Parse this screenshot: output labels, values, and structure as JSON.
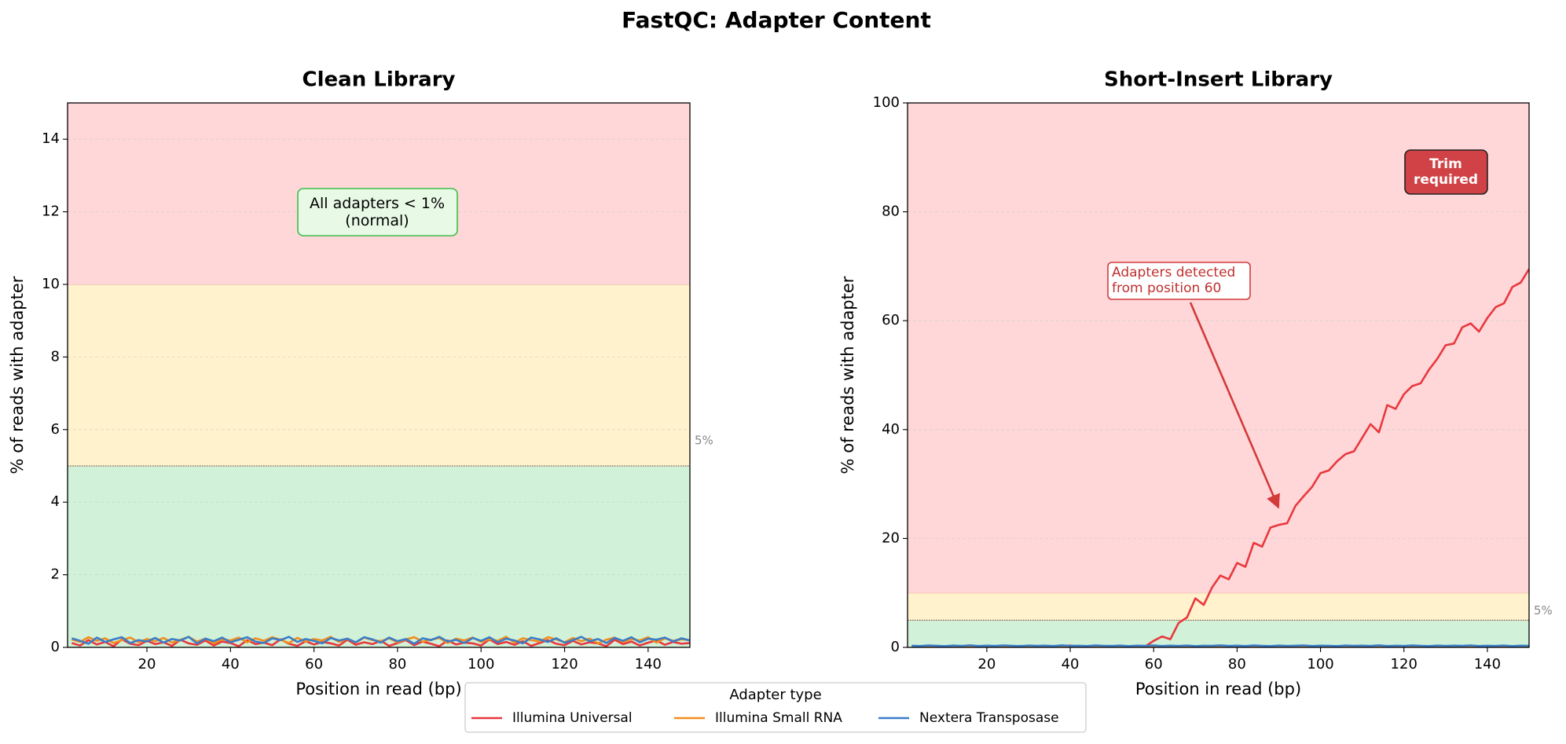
{
  "title": "FastQC: Adapter Content",
  "legend_title": "Adapter type",
  "chart_data": [
    {
      "type": "line",
      "title": "Clean Library",
      "x_label": "Position in read (bp)",
      "y_label": "% of reads with adapter",
      "xlim": [
        1,
        150
      ],
      "xticks": [
        20,
        40,
        60,
        80,
        100,
        120,
        140
      ],
      "ylim": [
        0,
        15
      ],
      "yticks": [
        0,
        2,
        4,
        6,
        8,
        10,
        12,
        14
      ],
      "grid": true,
      "zones": [
        {
          "from": 0,
          "to": 5,
          "color": "#d1f2d8"
        },
        {
          "from": 5,
          "to": 10,
          "color": "#fff2cc"
        },
        {
          "from": 10,
          "to": 15,
          "color": "#ffd7d9"
        }
      ],
      "threshold": {
        "value": 5,
        "label": "5%"
      },
      "annotation": "All adapters < 1%\n(normal)",
      "x": [
        2,
        4,
        6,
        8,
        10,
        12,
        14,
        16,
        18,
        20,
        22,
        24,
        26,
        28,
        30,
        32,
        34,
        36,
        38,
        40,
        42,
        44,
        46,
        48,
        50,
        52,
        54,
        56,
        58,
        60,
        62,
        64,
        66,
        68,
        70,
        72,
        74,
        76,
        78,
        80,
        82,
        84,
        86,
        88,
        90,
        92,
        94,
        96,
        98,
        100,
        102,
        104,
        106,
        108,
        110,
        112,
        114,
        116,
        118,
        120,
        122,
        124,
        126,
        128,
        130,
        132,
        134,
        136,
        138,
        140,
        142,
        144,
        146,
        148,
        150
      ],
      "series": [
        {
          "name": "Illumina Universal",
          "color": "#e8383d",
          "values": [
            0.12,
            0.05,
            0.2,
            0.08,
            0.15,
            0.03,
            0.22,
            0.1,
            0.06,
            0.18,
            0.09,
            0.14,
            0.04,
            0.21,
            0.11,
            0.07,
            0.19,
            0.05,
            0.16,
            0.12,
            0.03,
            0.2,
            0.09,
            0.13,
            0.06,
            0.22,
            0.1,
            0.04,
            0.17,
            0.08,
            0.15,
            0.11,
            0.05,
            0.21,
            0.07,
            0.14,
            0.09,
            0.18,
            0.04,
            0.12,
            0.2,
            0.06,
            0.16,
            0.1,
            0.03,
            0.19,
            0.08,
            0.13,
            0.11,
            0.05,
            0.22,
            0.09,
            0.15,
            0.07,
            0.17,
            0.04,
            0.12,
            0.2,
            0.1,
            0.06,
            0.18,
            0.08,
            0.14,
            0.11,
            0.03,
            0.21,
            0.09,
            0.16,
            0.05,
            0.13,
            0.19,
            0.07,
            0.15,
            0.1,
            0.12
          ]
        },
        {
          "name": "Illumina Small RNA",
          "color": "#f28e1c",
          "values": [
            0.22,
            0.15,
            0.28,
            0.18,
            0.25,
            0.12,
            0.2,
            0.27,
            0.14,
            0.23,
            0.17,
            0.26,
            0.13,
            0.21,
            0.29,
            0.16,
            0.24,
            0.11,
            0.22,
            0.19,
            0.27,
            0.14,
            0.25,
            0.18,
            0.28,
            0.21,
            0.12,
            0.26,
            0.16,
            0.23,
            0.19,
            0.29,
            0.15,
            0.24,
            0.13,
            0.27,
            0.2,
            0.17,
            0.25,
            0.14,
            0.22,
            0.28,
            0.16,
            0.21,
            0.26,
            0.12,
            0.24,
            0.19,
            0.27,
            0.15,
            0.23,
            0.18,
            0.29,
            0.13,
            0.25,
            0.2,
            0.16,
            0.28,
            0.22,
            0.14,
            0.26,
            0.17,
            0.24,
            0.11,
            0.21,
            0.27,
            0.15,
            0.23,
            0.19,
            0.28,
            0.13,
            0.25,
            0.18,
            0.22,
            0.2
          ]
        },
        {
          "name": "Nextera Transposase",
          "color": "#3a7dc9",
          "values": [
            0.25,
            0.18,
            0.1,
            0.27,
            0.15,
            0.22,
            0.28,
            0.12,
            0.2,
            0.16,
            0.26,
            0.13,
            0.23,
            0.19,
            0.29,
            0.11,
            0.24,
            0.17,
            0.27,
            0.14,
            0.21,
            0.28,
            0.16,
            0.12,
            0.25,
            0.2,
            0.29,
            0.15,
            0.23,
            0.18,
            0.11,
            0.26,
            0.19,
            0.24,
            0.14,
            0.28,
            0.22,
            0.13,
            0.27,
            0.17,
            0.23,
            0.1,
            0.25,
            0.2,
            0.29,
            0.16,
            0.21,
            0.12,
            0.26,
            0.18,
            0.28,
            0.14,
            0.24,
            0.19,
            0.11,
            0.27,
            0.22,
            0.15,
            0.25,
            0.13,
            0.2,
            0.29,
            0.17,
            0.23,
            0.12,
            0.26,
            0.18,
            0.28,
            0.14,
            0.24,
            0.21,
            0.27,
            0.16,
            0.25,
            0.19
          ]
        }
      ]
    },
    {
      "type": "line",
      "title": "Short-Insert Library",
      "x_label": "Position in read (bp)",
      "y_label": "% of reads with adapter",
      "xlim": [
        1,
        150
      ],
      "xticks": [
        20,
        40,
        60,
        80,
        100,
        120,
        140
      ],
      "ylim": [
        0,
        100
      ],
      "yticks": [
        0,
        20,
        40,
        60,
        80,
        100
      ],
      "grid": true,
      "zones": [
        {
          "from": 0,
          "to": 5,
          "color": "#d1f2d8"
        },
        {
          "from": 5,
          "to": 10,
          "color": "#fff2cc"
        },
        {
          "from": 10,
          "to": 100,
          "color": "#ffd7d9"
        }
      ],
      "threshold": {
        "value": 5,
        "label": "5%"
      },
      "annotation": "Adapters detected\nfrom position 60",
      "badge": "Trim\nrequired",
      "x": [
        2,
        4,
        6,
        8,
        10,
        12,
        14,
        16,
        18,
        20,
        22,
        24,
        26,
        28,
        30,
        32,
        34,
        36,
        38,
        40,
        42,
        44,
        46,
        48,
        50,
        52,
        54,
        56,
        58,
        60,
        62,
        64,
        66,
        68,
        70,
        72,
        74,
        76,
        78,
        80,
        82,
        84,
        86,
        88,
        90,
        92,
        94,
        96,
        98,
        100,
        102,
        104,
        106,
        108,
        110,
        112,
        114,
        116,
        118,
        120,
        122,
        124,
        126,
        128,
        130,
        132,
        134,
        136,
        138,
        140,
        142,
        144,
        146,
        148,
        150
      ],
      "series": [
        {
          "name": "Illumina Universal",
          "color": "#e8383d",
          "values": [
            0.15,
            0.22,
            0.1,
            0.28,
            0.18,
            0.12,
            0.25,
            0.2,
            0.08,
            0.3,
            0.16,
            0.22,
            0.11,
            0.27,
            0.19,
            0.14,
            0.24,
            0.09,
            0.21,
            0.33,
            0.17,
            0.12,
            0.26,
            0.2,
            0.15,
            0.29,
            0.1,
            0.23,
            0.18,
            1.2,
            2.0,
            1.5,
            4.5,
            5.5,
            9.0,
            7.8,
            11.0,
            13.2,
            12.5,
            15.5,
            14.8,
            19.2,
            18.5,
            22.0,
            22.5,
            22.8,
            26.0,
            27.8,
            29.5,
            32.0,
            32.5,
            34.2,
            35.5,
            36.0,
            38.5,
            41.0,
            39.5,
            44.5,
            43.8,
            46.5,
            48.0,
            48.5,
            51.0,
            53.0,
            55.5,
            55.8,
            58.8,
            59.5,
            58.0,
            60.5,
            62.5,
            63.2,
            66.2,
            67.0,
            69.5
          ]
        },
        {
          "name": "Illumina Small RNA",
          "color": "#f28e1c",
          "values": [
            0.12,
            0.18,
            0.09,
            0.21,
            0.14,
            0.25,
            0.11,
            0.19,
            0.16,
            0.08,
            0.22,
            0.13,
            0.2,
            0.1,
            0.24,
            0.15,
            0.18,
            0.12,
            0.26,
            0.09,
            0.17,
            0.21,
            0.11,
            0.23,
            0.14,
            0.19,
            0.08,
            0.22,
            0.16,
            0.12,
            0.2,
            0.1,
            0.25,
            0.13,
            0.18,
            0.15,
            0.21,
            0.09,
            0.24,
            0.17,
            0.11,
            0.22,
            0.14,
            0.19,
            0.12,
            0.26,
            0.16,
            0.08,
            0.23,
            0.18,
            0.13,
            0.21,
            0.1,
            0.25,
            0.15,
            0.19,
            0.12,
            0.22,
            0.17,
            0.09,
            0.24,
            0.14,
            0.2,
            0.11,
            0.18,
            0.16,
            0.23,
            0.13,
            0.21,
            0.1,
            0.19,
            0.15,
            0.25,
            0.12,
            0.17
          ]
        },
        {
          "name": "Nextera Transposase",
          "color": "#3a7dc9",
          "values": [
            0.3,
            0.25,
            0.35,
            0.28,
            0.22,
            0.33,
            0.27,
            0.38,
            0.24,
            0.31,
            0.26,
            0.36,
            0.29,
            0.23,
            0.34,
            0.28,
            0.32,
            0.25,
            0.37,
            0.27,
            0.3,
            0.24,
            0.35,
            0.29,
            0.26,
            0.33,
            0.22,
            0.31,
            0.28,
            0.36,
            0.25,
            0.32,
            0.27,
            0.34,
            0.23,
            0.3,
            0.29,
            0.37,
            0.26,
            0.31,
            0.24,
            0.35,
            0.28,
            0.22,
            0.33,
            0.27,
            0.3,
            0.36,
            0.25,
            0.32,
            0.29,
            0.23,
            0.34,
            0.28,
            0.31,
            0.26,
            0.37,
            0.24,
            0.3,
            0.27,
            0.35,
            0.29,
            0.22,
            0.33,
            0.26,
            0.31,
            0.28,
            0.36,
            0.25,
            0.3,
            0.27,
            0.34,
            0.23,
            0.32,
            0.29
          ]
        }
      ]
    }
  ]
}
